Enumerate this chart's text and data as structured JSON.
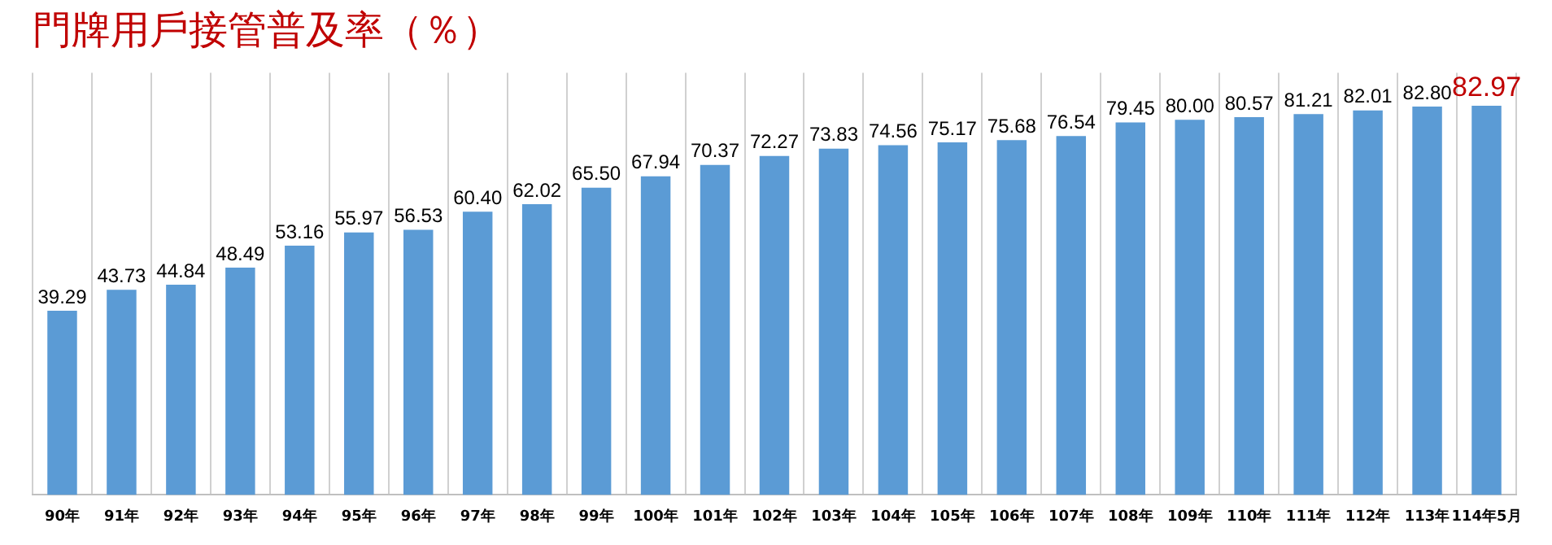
{
  "chart_data": {
    "type": "bar",
    "title": "門牌用戶接管普及率（％）",
    "categories": [
      "90年",
      "91年",
      "92年",
      "93年",
      "94年",
      "95年",
      "96年",
      "97年",
      "98年",
      "99年",
      "100年",
      "101年",
      "102年",
      "103年",
      "104年",
      "105年",
      "106年",
      "107年",
      "108年",
      "109年",
      "110年",
      "111年",
      "112年",
      "113年",
      "114年5月"
    ],
    "values": [
      39.29,
      43.73,
      44.84,
      48.49,
      53.16,
      55.97,
      56.53,
      60.4,
      62.02,
      65.5,
      67.94,
      70.37,
      72.27,
      73.83,
      74.56,
      75.17,
      75.68,
      76.54,
      79.45,
      80.0,
      80.57,
      81.21,
      82.01,
      82.8,
      82.97
    ],
    "value_labels": [
      "39.29",
      "43.73",
      "44.84",
      "48.49",
      "53.16",
      "55.97",
      "56.53",
      "60.40",
      "62.02",
      "65.50",
      "67.94",
      "70.37",
      "72.27",
      "73.83",
      "74.56",
      "75.17",
      "75.68",
      "76.54",
      "79.45",
      "80.00",
      "80.57",
      "81.21",
      "82.01",
      "82.80",
      "82.97"
    ],
    "color": "#5b9bd5",
    "grid": "x",
    "legend": false,
    "tick_labels": "x"
  }
}
